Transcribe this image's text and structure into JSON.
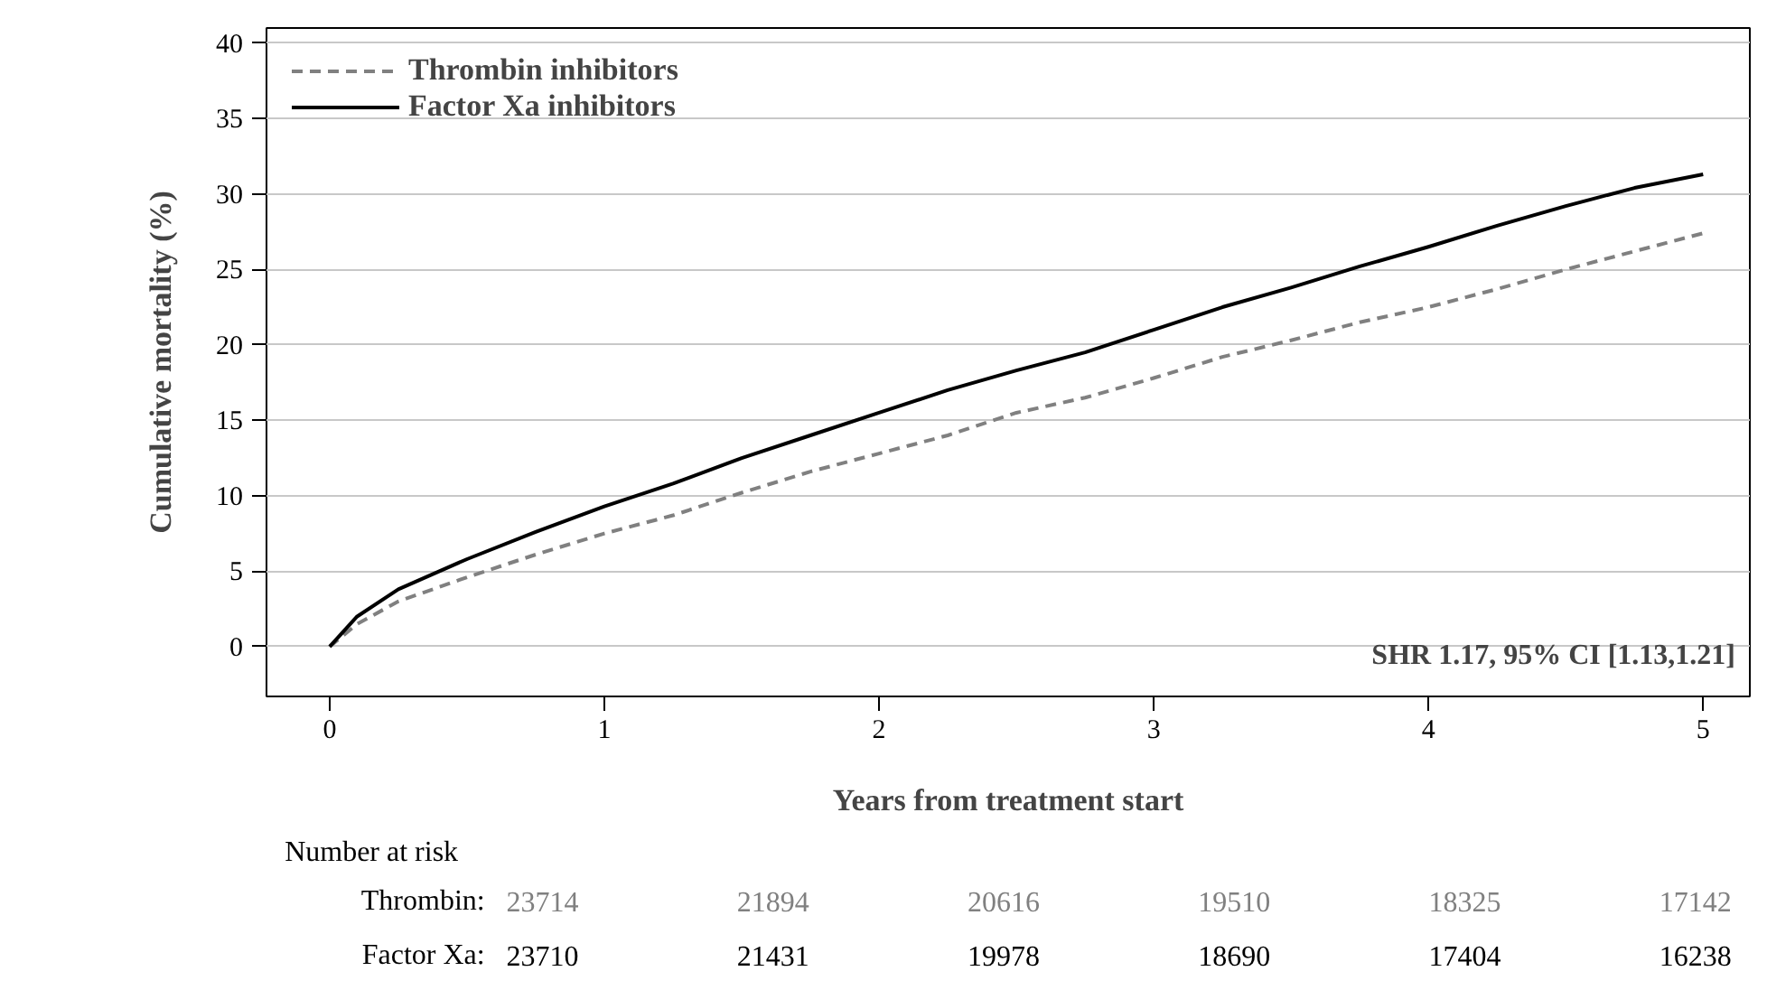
{
  "chart_data": {
    "type": "line",
    "xlabel": "Years from treatment start",
    "ylabel": "Cumulative mortality (%)",
    "xlim": [
      -0.23,
      5.17
    ],
    "ylim": [
      -3.3,
      41
    ],
    "xticks": [
      0,
      1,
      2,
      3,
      4,
      5
    ],
    "yticks": [
      0,
      5,
      10,
      15,
      20,
      25,
      30,
      35,
      40
    ],
    "grid": "y",
    "legend": "top left",
    "series": [
      {
        "name": "Thrombin inhibitors",
        "color": "#808080",
        "line_style": "dashed",
        "x": [
          0,
          0.1,
          0.25,
          0.5,
          0.75,
          1,
          1.25,
          1.5,
          1.75,
          2,
          2.25,
          2.5,
          2.75,
          3,
          3.25,
          3.5,
          3.75,
          4,
          4.25,
          4.5,
          4.75,
          5
        ],
        "values": [
          0,
          1.5,
          3,
          4.6,
          6.1,
          7.5,
          8.7,
          10.2,
          11.6,
          12.8,
          14,
          15.5,
          16.5,
          17.8,
          19.2,
          20.3,
          21.5,
          22.5,
          23.7,
          25,
          26.2,
          27.4
        ]
      },
      {
        "name": "Factor Xa inhibitors",
        "color": "#000000",
        "line_style": "solid",
        "x": [
          0,
          0.1,
          0.25,
          0.5,
          0.75,
          1,
          1.25,
          1.5,
          1.75,
          2,
          2.25,
          2.5,
          2.75,
          3,
          3.25,
          3.5,
          3.75,
          4,
          4.25,
          4.5,
          4.75,
          5
        ],
        "values": [
          0,
          2,
          3.8,
          5.8,
          7.6,
          9.3,
          10.8,
          12.5,
          14,
          15.5,
          17,
          18.3,
          19.5,
          21,
          22.5,
          23.8,
          25.2,
          26.5,
          27.9,
          29.2,
          30.4,
          31.3
        ]
      }
    ],
    "annotations": [
      "SHR 1.17, 95% CI [1.13,1.21]",
      "Number at risk",
      "Thrombin:",
      "23714",
      "21894",
      "20616",
      "19510",
      "18325",
      "17142",
      "Factor Xa:",
      "23710",
      "21431",
      "19978",
      "18690",
      "17404",
      "16238"
    ]
  }
}
